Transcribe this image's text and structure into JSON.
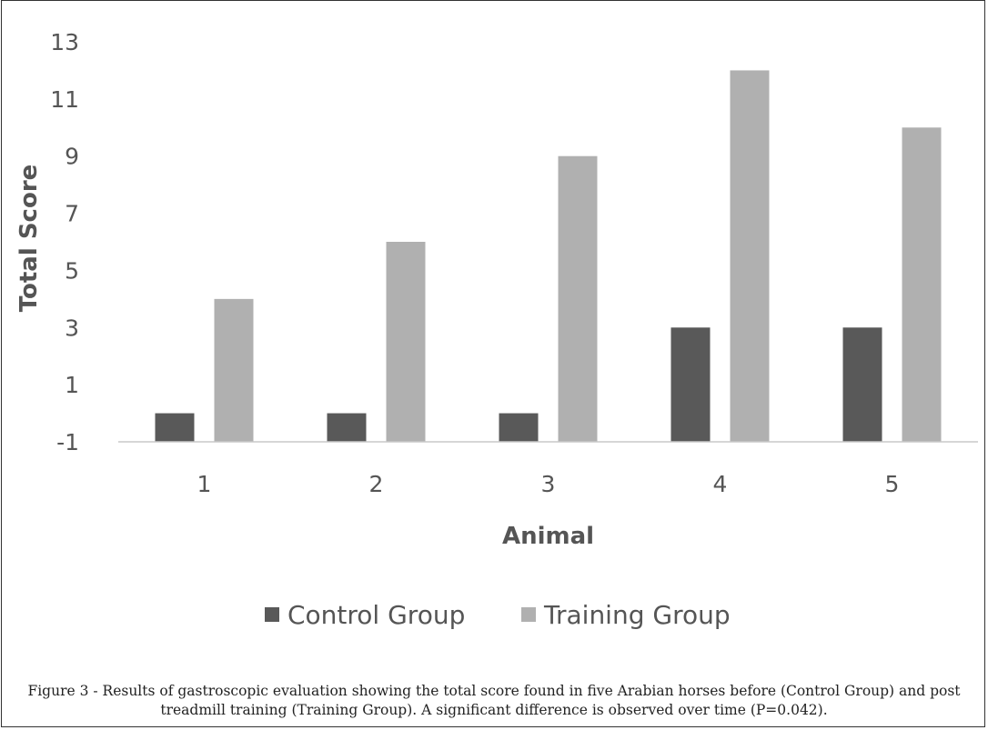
{
  "chart_data": {
    "type": "bar",
    "categories": [
      "1",
      "2",
      "3",
      "4",
      "5"
    ],
    "series": [
      {
        "name": "Control Group",
        "values": [
          0,
          0,
          0,
          3,
          3
        ],
        "color": "#595959"
      },
      {
        "name": "Training Group",
        "values": [
          4,
          6,
          9,
          12,
          10
        ],
        "color": "#b0b0b0"
      }
    ],
    "baseline": -1,
    "ylim": [
      -1,
      13
    ],
    "yticks": [
      "-1",
      "1",
      "3",
      "5",
      "7",
      "9",
      "11",
      "13"
    ],
    "xlabel": "Animal",
    "ylabel": "Total Score",
    "grid": false,
    "legend_position": "bottom"
  },
  "caption": "Figure 3 - Results of gastroscopic evaluation showing the total score found in five Arabian horses before (Control Group) and post treadmill training (Training Group). A significant difference is observed over time (P=0.042)."
}
